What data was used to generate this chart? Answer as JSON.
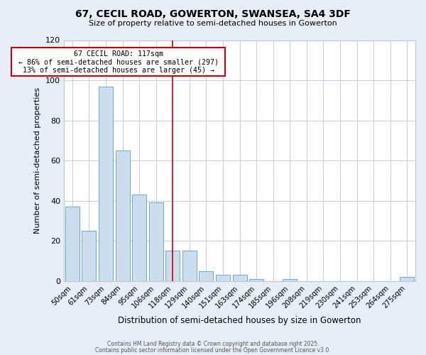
{
  "title": "67, CECIL ROAD, GOWERTON, SWANSEA, SA4 3DF",
  "subtitle": "Size of property relative to semi-detached houses in Gowerton",
  "xlabel": "Distribution of semi-detached houses by size in Gowerton",
  "ylabel": "Number of semi-detached properties",
  "bar_labels": [
    "50sqm",
    "61sqm",
    "73sqm",
    "84sqm",
    "95sqm",
    "106sqm",
    "118sqm",
    "129sqm",
    "140sqm",
    "151sqm",
    "163sqm",
    "174sqm",
    "185sqm",
    "196sqm",
    "208sqm",
    "219sqm",
    "230sqm",
    "241sqm",
    "253sqm",
    "264sqm",
    "275sqm"
  ],
  "bar_values": [
    37,
    25,
    97,
    65,
    43,
    39,
    15,
    15,
    5,
    3,
    3,
    1,
    0,
    1,
    0,
    0,
    0,
    0,
    0,
    0,
    2
  ],
  "bar_color": "#ccdded",
  "bar_edge_color": "#6aaad4",
  "ylim": [
    0,
    120
  ],
  "yticks": [
    0,
    20,
    40,
    60,
    80,
    100,
    120
  ],
  "marker_index": 6,
  "marker_line_color": "#cc0000",
  "annotation_title": "67 CECIL ROAD: 117sqm",
  "annotation_line1": "← 86% of semi-detached houses are smaller (297)",
  "annotation_line2": "13% of semi-detached houses are larger (45) →",
  "annotation_box_edge": "#cc0000",
  "footer_line1": "Contains HM Land Registry data © Crown copyright and database right 2025.",
  "footer_line2": "Contains public sector information licensed under the Open Government Licence v3.0.",
  "bg_color": "#e8eef8",
  "plot_bg_color": "#ffffff",
  "grid_color": "#b8c8dc"
}
